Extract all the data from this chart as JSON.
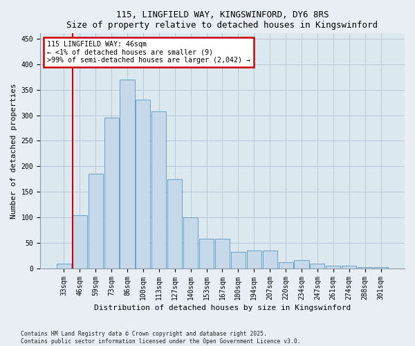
{
  "title1": "115, LINGFIELD WAY, KINGSWINFORD, DY6 8RS",
  "title2": "Size of property relative to detached houses in Kingswinford",
  "xlabel": "Distribution of detached houses by size in Kingswinford",
  "ylabel": "Number of detached properties",
  "categories": [
    "33sqm",
    "46sqm",
    "59sqm",
    "73sqm",
    "86sqm",
    "100sqm",
    "113sqm",
    "127sqm",
    "140sqm",
    "153sqm",
    "167sqm",
    "180sqm",
    "194sqm",
    "207sqm",
    "220sqm",
    "234sqm",
    "247sqm",
    "261sqm",
    "274sqm",
    "288sqm",
    "301sqm"
  ],
  "values": [
    9,
    105,
    185,
    295,
    370,
    330,
    307,
    175,
    100,
    58,
    58,
    33,
    35,
    35,
    12,
    16,
    9,
    5,
    5,
    3,
    3
  ],
  "bar_color": "#c5d9eb",
  "bar_edge_color": "#6a9fc0",
  "highlight_index": 1,
  "highlight_line_color": "#cc0000",
  "annotation_text": "115 LINGFIELD WAY: 46sqm\n← <1% of detached houses are smaller (9)\n>99% of semi-detached houses are larger (2,042) →",
  "annotation_box_color": "#ffffff",
  "annotation_box_edge": "#cc0000",
  "ylim": [
    0,
    460
  ],
  "yticks": [
    0,
    50,
    100,
    150,
    200,
    250,
    300,
    350,
    400,
    450
  ],
  "footer1": "Contains HM Land Registry data © Crown copyright and database right 2025.",
  "footer2": "Contains public sector information licensed under the Open Government Licence v3.0.",
  "bg_color": "#e8eef4",
  "plot_bg_color": "#dce8f0",
  "grid_color": "#b8c8d8",
  "title_fontsize": 9,
  "tick_fontsize": 7,
  "ylabel_fontsize": 8,
  "xlabel_fontsize": 8
}
